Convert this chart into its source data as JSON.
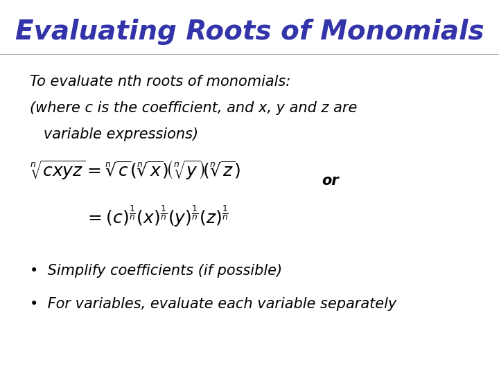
{
  "title": "Evaluating Roots of Monomials",
  "title_color": "#3333AA",
  "title_fontsize": 28,
  "bg_color": "#FFFFFF",
  "body_text_color": "#000000",
  "body_fontsize": 15,
  "line1": "To evaluate nth roots of monomials:",
  "line2": "(where c is the coefficient, and x, y and z are",
  "line3": "   variable expressions)",
  "eq1": "$\\sqrt[n]{cxyz} = \\sqrt[n]{c}\\left(\\sqrt[n]{x}\\right)\\!\\left(\\sqrt[n]{y}\\right)\\!\\left(\\sqrt[n]{z}\\right)$",
  "or_text": "or",
  "eq2": "$= (c)^{\\frac{1}{n}}(x)^{\\frac{1}{n}}(y)^{\\frac{1}{n}}(z)^{\\frac{1}{n}}$",
  "bullet1": "Simplify coefficients (if possible)",
  "bullet2": "For variables, evaluate each variable separately"
}
